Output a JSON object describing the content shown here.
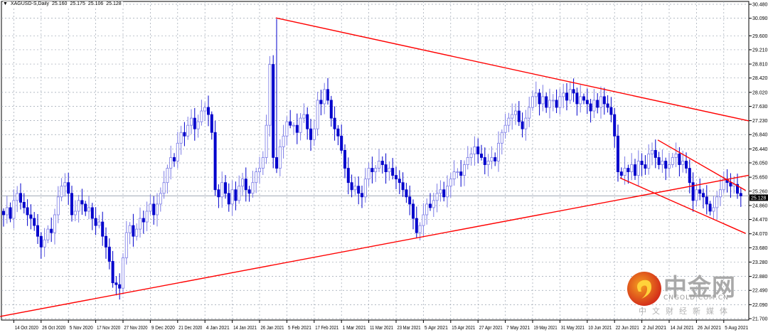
{
  "header": {
    "symbol": "XAGUSD-S,Daily",
    "open": "25.160",
    "high": "25.175",
    "low": "25.106",
    "close": "25.128"
  },
  "watermark": {
    "name": "中金网",
    "domain": "CNGOLD.COM.CN",
    "slogan": "中文财经新媒体"
  },
  "colors": {
    "bull": "#7b7be6",
    "bear": "#0000cc",
    "trendline": "#ff0000",
    "grid": "#9aa4b0",
    "price_line": "#a0a8b4"
  },
  "chart_data": {
    "type": "candlestick",
    "title": "XAGUSD-S,Daily",
    "current_price": 25.128,
    "current_price_label": "25.128",
    "ylim": [
      21.7,
      30.48
    ],
    "grid": true,
    "y_ticks": [
      "30.480",
      "30.090",
      "29.600",
      "29.210",
      "28.810",
      "28.420",
      "28.020",
      "27.630",
      "27.230",
      "26.840",
      "26.440",
      "26.050",
      "25.650",
      "25.260",
      "24.860",
      "24.470",
      "24.070",
      "23.680",
      "23.280",
      "22.880",
      "22.490",
      "22.090",
      "21.700"
    ],
    "x_ticks": [
      "14 Oct 2020",
      "26 Oct 2020",
      "5 Nov 2020",
      "17 Nov 2020",
      "27 Nov 2020",
      "9 Dec 2020",
      "21 Dec 2020",
      "4 Jan 2021",
      "14 Jan 2021",
      "26 Jan 2021",
      "5 Feb 2021",
      "17 Feb 2021",
      "1 Mar 2021",
      "11 Mar 2021",
      "23 Mar 2021",
      "5 Apr 2021",
      "15 Apr 2021",
      "27 Apr 2021",
      "7 May 2021",
      "19 May 2021",
      "31 May 2021",
      "10 Jun 2021",
      "22 Jun 2021",
      "2 Jul 2021",
      "14 Jul 2021",
      "26 Jul 2021",
      "5 Aug 2021"
    ],
    "closes": [
      24.6,
      24.8,
      24.5,
      25.0,
      25.2,
      24.95,
      24.8,
      24.6,
      24.5,
      24.3,
      24.0,
      23.7,
      23.9,
      24.2,
      24.1,
      24.6,
      25.1,
      25.4,
      25.5,
      25.2,
      24.6,
      24.7,
      25.0,
      24.9,
      24.7,
      24.8,
      24.5,
      24.3,
      24.4,
      24.0,
      23.7,
      23.3,
      22.7,
      22.65,
      22.55,
      23.4,
      24.1,
      24.3,
      24.0,
      24.2,
      24.5,
      24.4,
      24.7,
      24.9,
      24.6,
      24.9,
      25.2,
      25.5,
      25.9,
      26.2,
      26.1,
      26.6,
      26.9,
      26.8,
      27.1,
      27.3,
      27.0,
      27.2,
      27.5,
      27.6,
      27.4,
      26.9,
      25.3,
      25.1,
      25.5,
      25.2,
      24.9,
      25.3,
      25.0,
      25.4,
      25.6,
      25.3,
      25.2,
      25.5,
      25.8,
      25.9,
      26.2,
      27.1,
      28.8,
      26.2,
      25.9,
      26.5,
      26.8,
      27.2,
      27.1,
      27.1,
      26.9,
      27.3,
      27.4,
      27.0,
      26.7,
      27.0,
      27.8,
      27.7,
      28.1,
      27.8,
      27.3,
      27.0,
      26.8,
      26.4,
      25.9,
      25.5,
      25.3,
      25.4,
      25.2,
      25.1,
      25.6,
      25.9,
      25.8,
      25.9,
      26.1,
      26.0,
      25.8,
      25.9,
      25.7,
      25.6,
      25.5,
      25.3,
      25.1,
      24.9,
      24.5,
      24.1,
      24.3,
      24.6,
      24.9,
      24.8,
      25.0,
      25.2,
      25.3,
      25.1,
      25.4,
      25.6,
      25.8,
      25.8,
      25.7,
      26.0,
      26.2,
      26.3,
      26.5,
      26.3,
      26.2,
      26.0,
      26.1,
      26.2,
      26.1,
      26.6,
      26.9,
      27.1,
      27.3,
      27.4,
      27.5,
      27.2,
      27.0,
      27.3,
      27.6,
      27.9,
      28.0,
      27.7,
      27.9,
      27.6,
      27.8,
      27.8,
      27.6,
      27.9,
      28.0,
      27.8,
      28.1,
      28.0,
      27.7,
      27.9,
      27.8,
      27.7,
      27.5,
      27.8,
      27.6,
      27.9,
      27.7,
      27.6,
      27.4,
      26.8,
      25.8,
      25.7,
      25.9,
      25.8,
      26.0,
      25.7,
      26.1,
      26.0,
      25.9,
      26.3,
      26.4,
      26.2,
      26.0,
      26.1,
      25.9,
      26.0,
      26.2,
      26.3,
      26.0,
      26.1,
      25.9,
      25.5,
      25.0,
      25.3,
      25.2,
      25.1,
      24.9,
      24.7,
      24.8,
      25.1,
      25.3,
      25.6,
      25.5,
      25.4,
      25.45,
      25.2,
      25.128
    ],
    "spike_high": {
      "date": "1 Feb 2021",
      "value": 30.07
    },
    "trendlines": [
      {
        "from": {
          "date": "1 Feb 2021",
          "value": 30.1
        },
        "to": {
          "date": "24 Aug 2021",
          "value": 27.06
        }
      },
      {
        "from": {
          "date": "8 Oct 2020",
          "value": 21.76
        },
        "to": {
          "date": "16 Aug 2021",
          "value": 25.73
        }
      },
      {
        "from": {
          "date": "9 Jul 2021",
          "value": 26.69
        },
        "to": {
          "date": "13 Aug 2021",
          "value": 25.28
        }
      },
      {
        "from": {
          "date": "24 Jun 2021",
          "value": 25.63
        },
        "to": {
          "date": "13 Aug 2021",
          "value": 24.08
        }
      }
    ]
  }
}
